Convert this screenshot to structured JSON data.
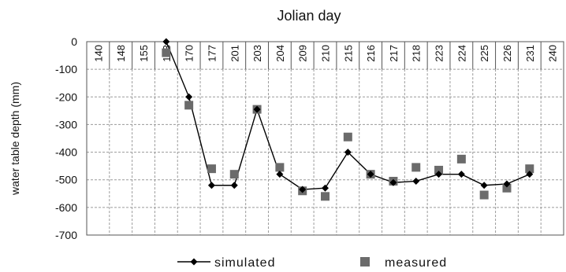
{
  "chart_data": {
    "type": "line",
    "title": "",
    "xlabel": "Jolian day",
    "ylabel": "water table depth (mm)",
    "categories": [
      "140",
      "148",
      "155",
      "163",
      "170",
      "177",
      "201",
      "203",
      "204",
      "209",
      "210",
      "215",
      "216",
      "217",
      "218",
      "223",
      "224",
      "225",
      "226",
      "231",
      "240"
    ],
    "ylim": [
      -700,
      0
    ],
    "yticks": [
      0,
      -100,
      -200,
      -300,
      -400,
      -500,
      -600,
      -700
    ],
    "grid": true,
    "legend_position": "bottom",
    "series": [
      {
        "name": "simulated",
        "marker": "diamond",
        "color": "#000000",
        "values": [
          null,
          null,
          null,
          0,
          -200,
          -520,
          -520,
          -245,
          -480,
          -535,
          -530,
          -400,
          -480,
          -510,
          -505,
          -480,
          -480,
          -520,
          -515,
          -480,
          null
        ]
      },
      {
        "name": "measured",
        "marker": "square",
        "color": "#6b6b6b",
        "values": [
          null,
          null,
          null,
          -40,
          -230,
          -460,
          -480,
          -245,
          -455,
          -540,
          -560,
          -345,
          -480,
          -505,
          -455,
          -465,
          -425,
          -555,
          -530,
          -460,
          null
        ]
      }
    ]
  }
}
